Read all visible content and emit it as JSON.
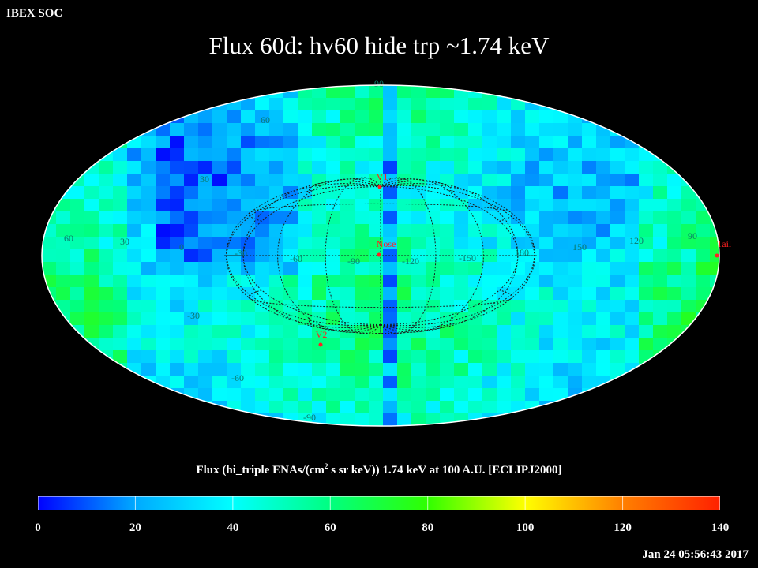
{
  "header": {
    "soc_label": "IBEX SOC",
    "title": "Flux   60d: hv60 hide trp ~1.74 keV"
  },
  "map": {
    "projection": "Aitoff",
    "frame": "ECLIPJ2000",
    "markers": [
      {
        "label": "V1",
        "color": "#ff2020"
      },
      {
        "label": "Nose",
        "color": "#ff2020"
      },
      {
        "label": "V2",
        "color": "#ff2020"
      },
      {
        "label": "Tail",
        "color": "#ff2020"
      }
    ],
    "longitude_labels": [
      "60",
      "30",
      "0",
      "-30",
      "-60",
      "-90",
      "-120",
      "-150",
      "180",
      "150",
      "120",
      "90"
    ],
    "latitude_labels": [
      "90",
      "60",
      "30",
      "-30",
      "-60",
      "-90"
    ],
    "grid_color": "#1a1a1a",
    "label_color": "#0a7a6a"
  },
  "colorbar": {
    "title_prefix": "Flux (hi_triple ENAs/(cm",
    "title_sup": "2",
    "title_suffix": " s sr keV))  1.74 keV at 100 A.U. [ECLIPJ2000]",
    "min": 0,
    "max": 140,
    "ticks": [
      "0",
      "20",
      "40",
      "60",
      "80",
      "100",
      "120",
      "140"
    ],
    "colors": [
      "#0000ff",
      "#00aaff",
      "#00ffff",
      "#00ff80",
      "#30ff00",
      "#ffff00",
      "#ff8000",
      "#ff2000"
    ]
  },
  "footer": {
    "timestamp": "Jan 24 05:56:43 2017"
  }
}
